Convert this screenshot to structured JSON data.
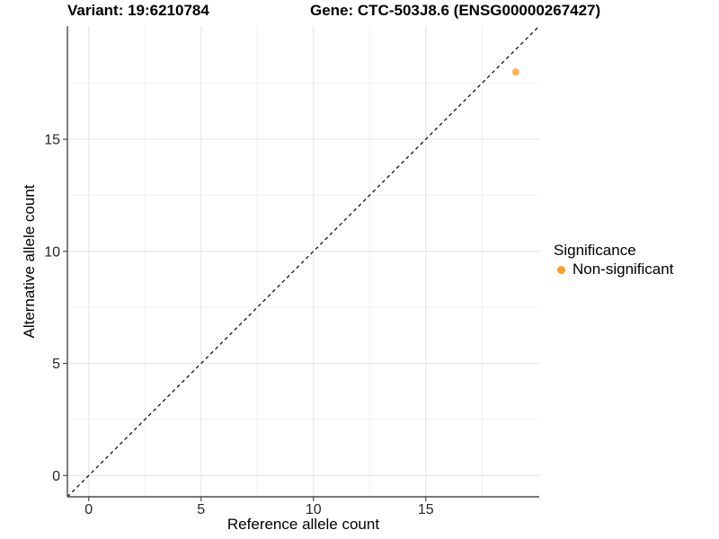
{
  "chart_data": {
    "type": "scatter",
    "titles": {
      "variant": "Variant: 19:6210784",
      "gene": "Gene: CTC-503J8.6 (ENSG00000267427)"
    },
    "xlabel": "Reference allele count",
    "ylabel": "Alternative allele count",
    "xlim": [
      -0.95,
      20.05
    ],
    "ylim": [
      -0.95,
      20.05
    ],
    "x_ticks": [
      0,
      5,
      10,
      15
    ],
    "y_ticks": [
      0,
      5,
      10,
      15
    ],
    "x_minor_ticks": [
      2.5,
      7.5,
      12.5,
      17.5
    ],
    "y_minor_ticks": [
      2.5,
      7.5,
      12.5,
      17.5
    ],
    "grid": true,
    "legend_position": "right",
    "legend": {
      "title": "Significance",
      "entries": [
        {
          "label": "Non-significant",
          "color": "#FF9D24"
        }
      ]
    },
    "series": [
      {
        "name": "Non-significant",
        "color": "#FF9D24",
        "points": [
          {
            "x": 19,
            "y": 18
          }
        ]
      }
    ],
    "reference_line": {
      "kind": "identity",
      "slope": 1,
      "intercept": 0,
      "style": "dashed",
      "color": "#000000"
    },
    "colors": {
      "background": "#FFFFFF",
      "major_grid": "#E5E5E5",
      "minor_grid": "#F0F0F0",
      "axis_line": "#4A4A4A",
      "tick_text": "#262626"
    }
  }
}
